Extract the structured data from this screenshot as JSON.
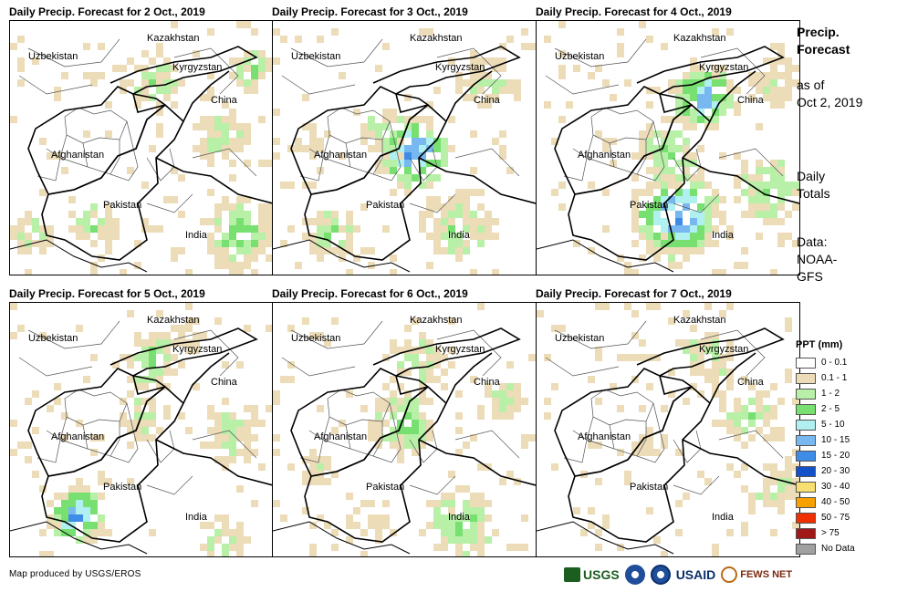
{
  "panels": [
    {
      "title": "Daily Precip. Forecast for 2 Oct., 2019",
      "pattern": 0
    },
    {
      "title": "Daily Precip. Forecast for 3 Oct., 2019",
      "pattern": 1
    },
    {
      "title": "Daily Precip. Forecast for 4 Oct., 2019",
      "pattern": 2
    },
    {
      "title": "Daily Precip. Forecast for 5 Oct., 2019",
      "pattern": 3
    },
    {
      "title": "Daily Precip. Forecast for 6 Oct., 2019",
      "pattern": 4
    },
    {
      "title": "Daily Precip. Forecast for 7 Oct., 2019",
      "pattern": 5
    }
  ],
  "map_labels": {
    "kazakhstan": "Kazakhstan",
    "uzbekistan": "Uzbekistan",
    "kyrgyzstan": "Kyrgyzstan",
    "china": "China",
    "afghanistan": "Afghanistan",
    "pakistan": "Pakistan",
    "india": "India"
  },
  "side": {
    "title_line1": "Precip.",
    "title_line2": "Forecast",
    "asof_line1": "as of",
    "asof_line2": "Oct 2, 2019",
    "daily_line1": "Daily",
    "daily_line2": "Totals",
    "data_line1": "Data:",
    "data_line2": "NOAA-",
    "data_line3": "GFS"
  },
  "legend": {
    "title": "PPT (mm)",
    "items": [
      {
        "label": "0 - 0.1",
        "color": "#ffffff"
      },
      {
        "label": "0.1 - 1",
        "color": "#ecdcb8"
      },
      {
        "label": "1 - 2",
        "color": "#b8f0a8"
      },
      {
        "label": "2 - 5",
        "color": "#78e070"
      },
      {
        "label": "5 - 10",
        "color": "#b0f0f0"
      },
      {
        "label": "10 - 15",
        "color": "#78b8f0"
      },
      {
        "label": "15 - 20",
        "color": "#3c8ce8"
      },
      {
        "label": "20 - 30",
        "color": "#1450c8"
      },
      {
        "label": "30 - 40",
        "color": "#f8e070"
      },
      {
        "label": "40 - 50",
        "color": "#f8a000"
      },
      {
        "label": "50 - 75",
        "color": "#f03000"
      },
      {
        "label": "> 75",
        "color": "#a01818"
      },
      {
        "label": "No Data",
        "color": "#a0a0a0"
      }
    ]
  },
  "credit": "Map produced by USGS/EROS",
  "logos": {
    "usgs": "USGS",
    "usaid": "USAID",
    "fews": "FEWS NET"
  }
}
